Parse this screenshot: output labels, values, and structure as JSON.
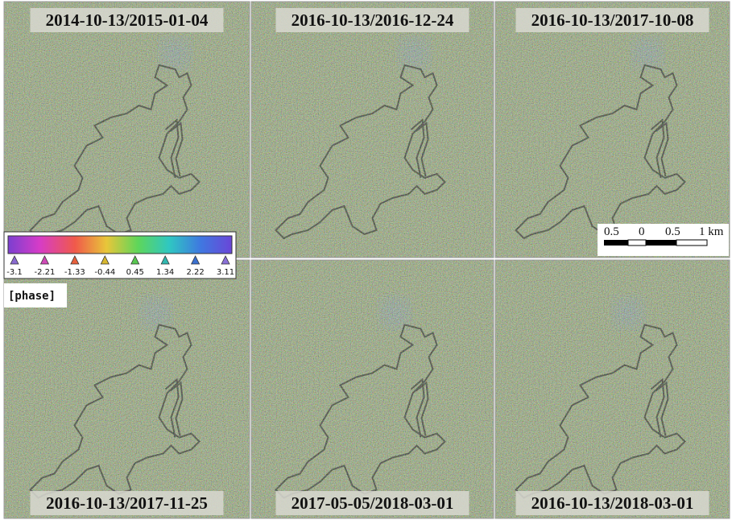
{
  "panels": [
    {
      "title": "2014-10-13/2015-01-04"
    },
    {
      "title": "2016-10-13/2016-12-24"
    },
    {
      "title": "2016-10-13/2017-10-08"
    },
    {
      "title": "2016-10-13/2017-11-25"
    },
    {
      "title": "2017-05-05/2018-03-01"
    },
    {
      "title": "2016-10-13/2018-03-01"
    }
  ],
  "colorbar": {
    "ticks": [
      "-3.1",
      "-2.21",
      "-1.33",
      "-0.44",
      "0.45",
      "1.34",
      "2.22",
      "3.11"
    ],
    "label": "[phase]"
  },
  "scale_bar": {
    "labels": [
      "0.5",
      "0",
      "0.5",
      "1 km"
    ]
  }
}
